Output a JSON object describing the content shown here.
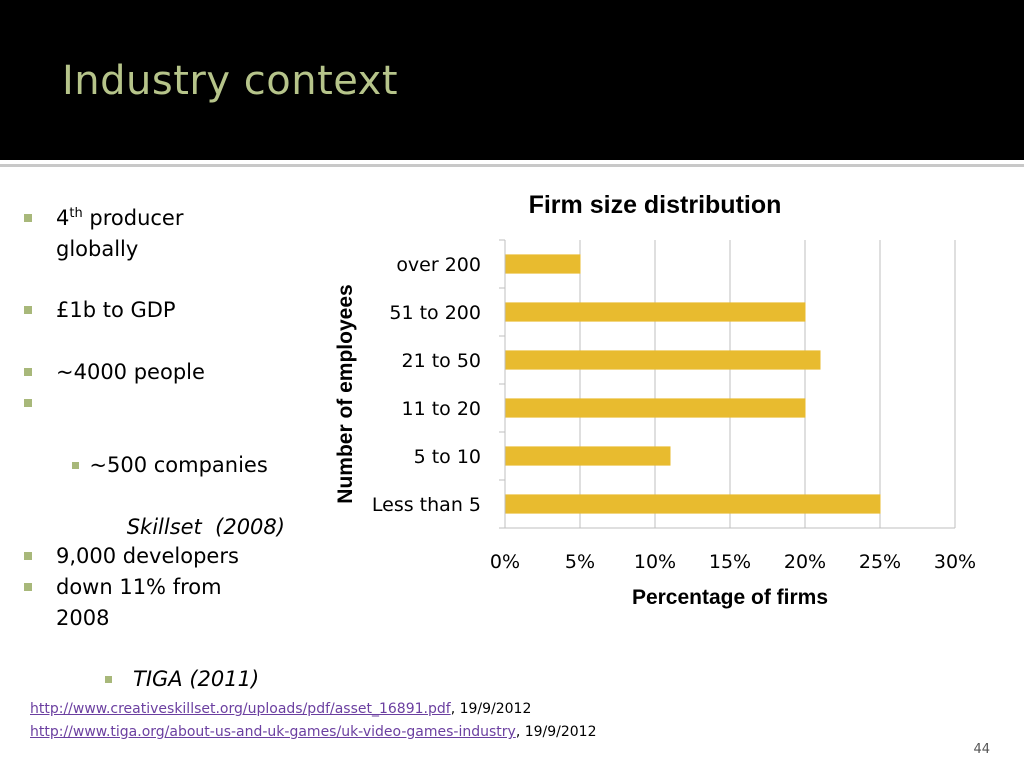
{
  "slide": {
    "title": "Industry context",
    "page_number": "44"
  },
  "bullets": [
    {
      "level": 1,
      "text_main": "4",
      "sup": "th",
      "text_rest": " producer",
      "line2": "globally"
    },
    {
      "level": 1,
      "text": "£1b to GDP"
    },
    {
      "level": 1,
      "text": "~4000 people"
    },
    {
      "level": 1,
      "text": " ~500 companies"
    },
    {
      "level": 2,
      "text": "Skillset  (2008)"
    },
    {
      "level": 1,
      "text": "9,000 developers"
    },
    {
      "level": 1,
      "text": "down 11% from",
      "line2": "2008"
    },
    {
      "level": 2,
      "text": "TIGA (2011)"
    }
  ],
  "references": [
    {
      "link": "http://www.creativeskillset.org/uploads/pdf/asset_16891.pdf",
      "date": ", 19/9/2012"
    },
    {
      "link": "http://www.tiga.org/about-us-and-uk-games/uk-video-games-industry",
      "date": ", 19/9/2012"
    }
  ],
  "chart_data": {
    "type": "bar",
    "orientation": "horizontal",
    "title": "Firm size distribution",
    "xlabel": "Percentage of firms",
    "ylabel": "Number of employees",
    "categories": [
      "Less than 5",
      "5 to 10",
      "11 to 20",
      "21 to 50",
      "51 to 200",
      "over 200"
    ],
    "values": [
      25,
      11,
      20,
      21,
      20,
      5
    ],
    "xlim": [
      0,
      30
    ],
    "xticks": [
      0,
      5,
      10,
      15,
      20,
      25,
      30
    ],
    "xtick_labels": [
      "0%",
      "5%",
      "10%",
      "15%",
      "20%",
      "25%",
      "30%"
    ],
    "grid": "vertical",
    "legend": "none",
    "bar_color": "#e8bb2f",
    "grid_color": "#bfbfbf"
  },
  "colors": {
    "title": "#b6c48a",
    "bullet_marker": "#a8b87a",
    "link": "#6b3fa0"
  }
}
